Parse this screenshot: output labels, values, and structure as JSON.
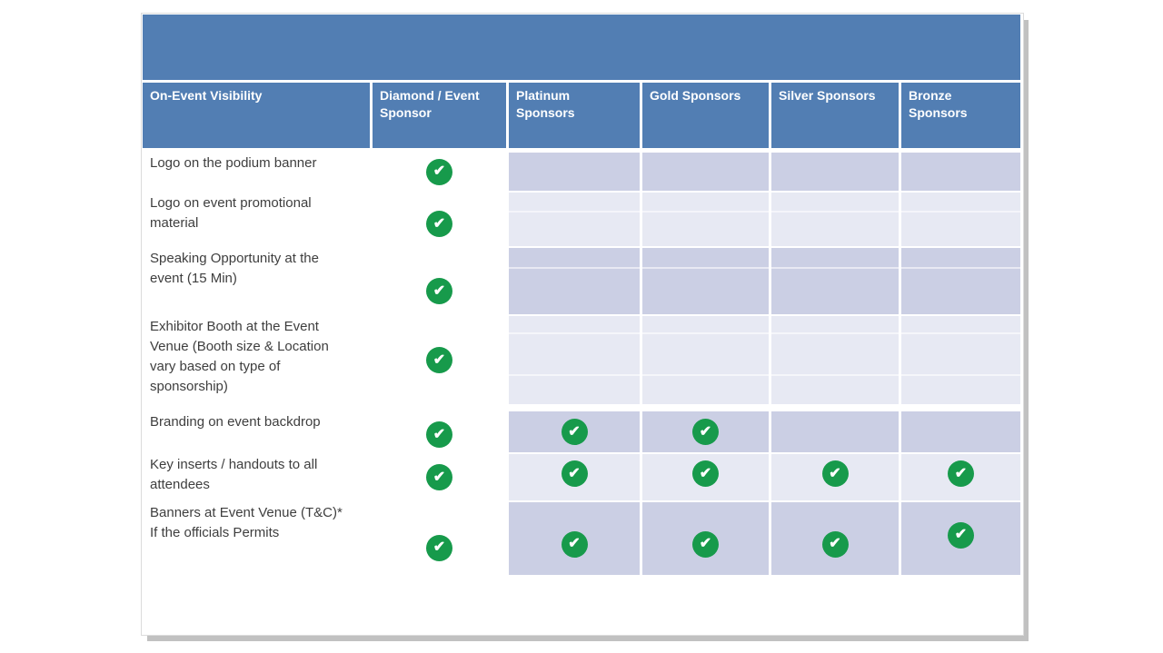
{
  "slide": {
    "colors": {
      "header_blue": "#527EB3",
      "row_band_dark": "#cbcfe4",
      "row_band_light": "#e7e9f3",
      "check_green": "#179a4b",
      "check_glyph_color": "#ffffff",
      "page_shadow": "#c1c1c1"
    },
    "table": {
      "check_symbol": "✔",
      "headers": [
        {
          "id": "visibility",
          "label": "On-Event Visibility"
        },
        {
          "id": "diamond",
          "label": "Diamond / Event\nSponsor"
        },
        {
          "id": "platinum",
          "label": "Platinum\nSponsors"
        },
        {
          "id": "gold",
          "label": "Gold Sponsors"
        },
        {
          "id": "silver",
          "label": "Silver Sponsors"
        },
        {
          "id": "bronze",
          "label": "Bronze\nSponsors"
        }
      ],
      "rows": [
        {
          "label": "Logo on the podium banner",
          "checks": [
            "✔",
            "",
            "",
            "",
            ""
          ]
        },
        {
          "label": "Logo on event promotional\nmaterial",
          "checks": [
            "✔",
            "",
            "",
            "",
            ""
          ]
        },
        {
          "label": "Speaking Opportunity at the\nevent (15 Min)",
          "checks": [
            "✔",
            "",
            "",
            "",
            ""
          ]
        },
        {
          "label": "Exhibitor Booth at the Event\nVenue (Booth size & Location\nvary based on type of\nsponsorship)",
          "checks": [
            "✔",
            "",
            "",
            "",
            ""
          ]
        },
        {
          "label": "Branding on event backdrop",
          "checks": [
            "✔",
            "✔",
            "✔",
            "",
            ""
          ]
        },
        {
          "label": "Key inserts / handouts to all\nattendees",
          "checks": [
            "✔",
            "✔",
            "✔",
            "✔",
            "✔"
          ]
        },
        {
          "label": "Banners at Event Venue (T&C)*\nIf the officials Permits",
          "checks": [
            "✔",
            "✔",
            "✔",
            "✔",
            "✔"
          ]
        }
      ]
    }
  }
}
